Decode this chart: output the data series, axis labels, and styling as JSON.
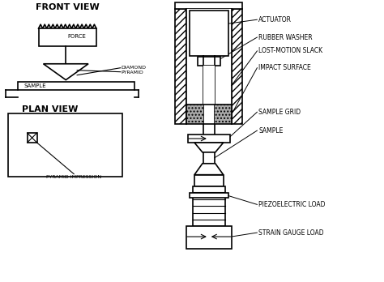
{
  "bg_color": "#ffffff",
  "line_color": "#000000",
  "labels": {
    "front_view": "FRONT VIEW",
    "plan_view": "PLAN VIEW",
    "force": "FORCE",
    "sample_fv": "SAMPLE",
    "diamond": "DIAMOND\nPYRAMID",
    "actuator": "ACTUATOR",
    "rubber_washer": "RUBBER WASHER",
    "lost_motion": "LOST-MOTION SLACK",
    "impact_surface": "IMPACT SURFACE",
    "sample_grid": "SAMPLE GRID",
    "sample": "SAMPLE",
    "piezoelectric": "PIEZOELECTRIC LOAD",
    "strain_gauge": "STRAIN GAUGE LOAD",
    "pyramid_impression": "PYRAMID IMPRESSION"
  }
}
